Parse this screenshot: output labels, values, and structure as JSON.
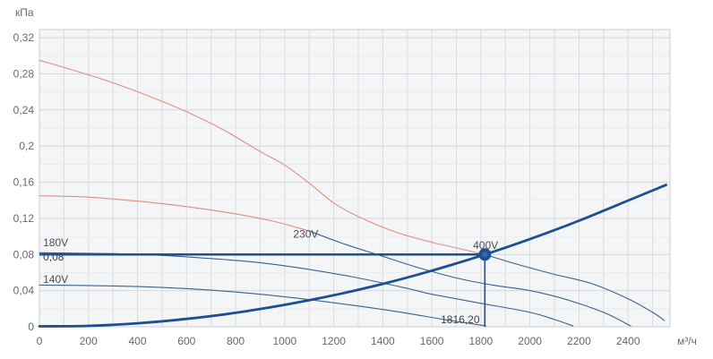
{
  "chart_data": {
    "type": "line",
    "title": "",
    "y_unit_label": "кПа",
    "x_unit_label": "м³/ч",
    "xlim": [
      0,
      2571
    ],
    "ylim": [
      0,
      0.329
    ],
    "grid": {
      "x_step": 100,
      "x_last_line": 2500,
      "y_minor_step": 0.02,
      "y_major_step": 0.04,
      "y_last_line": 0.32
    },
    "x_tick_values": [
      0,
      200,
      400,
      600,
      800,
      1000,
      1200,
      1400,
      1600,
      1800,
      2000,
      2200,
      2400
    ],
    "x_tick_labels": [
      "0",
      "200",
      "400",
      "600",
      "800",
      "1000",
      "1200",
      "1400",
      "1600",
      "1800",
      "2000",
      "2200",
      "2400"
    ],
    "y_tick_values": [
      0,
      0.04,
      0.08,
      0.12,
      0.16,
      0.2,
      0.24,
      0.28,
      0.32
    ],
    "y_tick_labels": [
      "0",
      "0,04",
      "0,08",
      "0,12",
      "0,16",
      "0,2",
      "0,24",
      "0,28",
      "0,32"
    ],
    "colors": {
      "plot_bg": "#f3f5f7",
      "grid_minor": "#e9ebee",
      "grid_major": "#d5d8dc",
      "grid_vertical": "#d9dbdf",
      "plot_border": "#c8ccd1",
      "curve_red": "#dd8f81",
      "curve_blue": "#3a628d",
      "accent_navy": "#1d4f93",
      "marker_fill": "#1d4f93",
      "marker_core": "#3a67a6",
      "tick_text": "#66696e",
      "label_text": "#4c5055",
      "annotation_text": "#3f4347"
    },
    "series": [
      {
        "name": "curve-400V-out-of-range",
        "color_key": "curve_red",
        "width": 1.1,
        "points": [
          [
            0,
            0.295
          ],
          [
            150,
            0.283
          ],
          [
            300,
            0.27
          ],
          [
            450,
            0.255
          ],
          [
            600,
            0.238
          ],
          [
            750,
            0.218
          ],
          [
            900,
            0.194
          ],
          [
            1000,
            0.179
          ],
          [
            1100,
            0.159
          ],
          [
            1200,
            0.137
          ],
          [
            1300,
            0.122
          ],
          [
            1450,
            0.105
          ],
          [
            1600,
            0.0935
          ],
          [
            1700,
            0.0873
          ],
          [
            1816,
            0.08
          ]
        ]
      },
      {
        "name": "curve-400V",
        "color_key": "curve_blue",
        "width": 1.1,
        "points": [
          [
            1816,
            0.08
          ],
          [
            1950,
            0.069
          ],
          [
            2100,
            0.058
          ],
          [
            2250,
            0.048
          ],
          [
            2400,
            0.031
          ],
          [
            2500,
            0.016
          ],
          [
            2548,
            0.007
          ]
        ]
      },
      {
        "name": "curve-230V-out-of-range",
        "color_key": "curve_red",
        "width": 1.1,
        "points": [
          [
            0,
            0.145
          ],
          [
            200,
            0.1435
          ],
          [
            400,
            0.139
          ],
          [
            600,
            0.133
          ],
          [
            800,
            0.125
          ],
          [
            950,
            0.117
          ],
          [
            1100,
            0.106
          ]
        ]
      },
      {
        "name": "curve-230V",
        "color_key": "curve_blue",
        "width": 1.1,
        "points": [
          [
            1100,
            0.106
          ],
          [
            1250,
            0.091
          ],
          [
            1400,
            0.078
          ],
          [
            1550,
            0.065
          ],
          [
            1700,
            0.054
          ],
          [
            1850,
            0.046
          ],
          [
            2000,
            0.04
          ],
          [
            2150,
            0.03
          ],
          [
            2300,
            0.016
          ],
          [
            2410,
            0.001
          ]
        ]
      },
      {
        "name": "curve-180V",
        "color_key": "curve_blue",
        "width": 1.1,
        "points": [
          [
            0,
            0.082
          ],
          [
            300,
            0.081
          ],
          [
            500,
            0.079
          ],
          [
            700,
            0.0755
          ],
          [
            900,
            0.071
          ],
          [
            1100,
            0.0635
          ],
          [
            1300,
            0.054
          ],
          [
            1500,
            0.0425
          ],
          [
            1600,
            0.036
          ],
          [
            1800,
            0.026
          ],
          [
            2000,
            0.016
          ],
          [
            2100,
            0.008
          ],
          [
            2175,
            0.001
          ]
        ]
      },
      {
        "name": "curve-140V",
        "color_key": "curve_blue",
        "width": 1.1,
        "points": [
          [
            0,
            0.0462
          ],
          [
            300,
            0.0452
          ],
          [
            500,
            0.0435
          ],
          [
            700,
            0.0405
          ],
          [
            900,
            0.036
          ],
          [
            1100,
            0.03
          ],
          [
            1300,
            0.023
          ],
          [
            1500,
            0.015
          ],
          [
            1650,
            0.008
          ],
          [
            1820,
            0.001
          ]
        ]
      },
      {
        "name": "system-resistance-curve",
        "color_key": "accent_navy",
        "width": 2.8,
        "points": [
          [
            0,
            0.0005
          ],
          [
            200,
            0.001
          ],
          [
            400,
            0.0039
          ],
          [
            600,
            0.0087
          ],
          [
            800,
            0.0155
          ],
          [
            1000,
            0.0243
          ],
          [
            1200,
            0.0349
          ],
          [
            1400,
            0.0475
          ],
          [
            1600,
            0.0621
          ],
          [
            1816.2,
            0.08
          ],
          [
            2000,
            0.097
          ],
          [
            2200,
            0.1174
          ],
          [
            2400,
            0.1397
          ],
          [
            2555,
            0.157
          ]
        ]
      }
    ],
    "curve_labels": [
      {
        "name": "curve-label-180V",
        "text": "180V",
        "q": 15,
        "p": 0.0892,
        "anchor": "start"
      },
      {
        "name": "curve-label-140V",
        "text": "140V",
        "q": 15,
        "p": 0.0487,
        "anchor": "start"
      },
      {
        "name": "curve-label-230V",
        "text": "230V",
        "q": 1035,
        "p": 0.0985,
        "anchor": "start"
      },
      {
        "name": "curve-label-400V",
        "text": "400V",
        "q": 1768,
        "p": 0.0862,
        "anchor": "start"
      }
    ],
    "working_point": {
      "flow": 1816.2,
      "pressure": 0.08,
      "flow_label": "1816,20",
      "pressure_label": "0,08",
      "selected_curve": "400V",
      "pressure_label_pos": {
        "q": 15,
        "p": 0.0733
      },
      "flow_label_pos": {
        "q": 1795,
        "p": 0.004
      }
    }
  }
}
